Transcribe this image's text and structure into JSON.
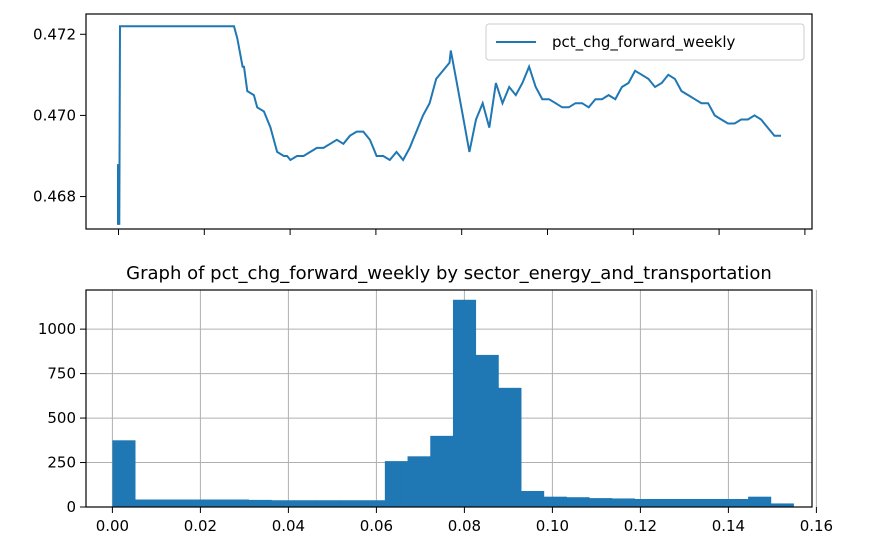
{
  "chart_data": [
    {
      "type": "line",
      "title": "",
      "xlabel": "",
      "ylabel": "",
      "ylim": [
        0.4672,
        0.4725
      ],
      "yticks": [
        "0.468",
        "0.470",
        "0.472"
      ],
      "ytick_values": [
        0.468,
        0.47,
        0.472
      ],
      "xlim": [
        0,
        1
      ],
      "xtick_count": 9,
      "legend": {
        "placement": "top-right",
        "entries": [
          "pct_chg_forward_weekly"
        ]
      },
      "grid": false,
      "series": [
        {
          "name": "pct_chg_forward_weekly",
          "color": "#1f77b4",
          "x": [
            0.0,
            0.0,
            0.002,
            0.003,
            0.003,
            0.02,
            0.05,
            0.1,
            0.15,
            0.17,
            0.175,
            0.18,
            0.188,
            0.19,
            0.195,
            0.205,
            0.21,
            0.22,
            0.23,
            0.24,
            0.25,
            0.255,
            0.26,
            0.27,
            0.28,
            0.29,
            0.3,
            0.31,
            0.32,
            0.33,
            0.34,
            0.35,
            0.36,
            0.37,
            0.38,
            0.385,
            0.39,
            0.4,
            0.41,
            0.42,
            0.43,
            0.44,
            0.445,
            0.45,
            0.46,
            0.47,
            0.48,
            0.49,
            0.5,
            0.502,
            0.51,
            0.52,
            0.53,
            0.54,
            0.55,
            0.56,
            0.57,
            0.58,
            0.59,
            0.6,
            0.61,
            0.62,
            0.63,
            0.64,
            0.65,
            0.66,
            0.67,
            0.68,
            0.69,
            0.7,
            0.71,
            0.72,
            0.73,
            0.74,
            0.75,
            0.76,
            0.77,
            0.78,
            0.79,
            0.8,
            0.81,
            0.82,
            0.83,
            0.84,
            0.85,
            0.86,
            0.87,
            0.88,
            0.89,
            0.9,
            0.91,
            0.92,
            0.93,
            0.94,
            0.95,
            0.96,
            0.97,
            0.98,
            0.99,
            1.0
          ],
          "y": [
            0.4673,
            0.4688,
            0.4673,
            0.4722,
            0.4722,
            0.4722,
            0.4722,
            0.4722,
            0.4722,
            0.4722,
            0.4722,
            0.4719,
            0.4712,
            0.4712,
            0.4706,
            0.4705,
            0.4702,
            0.4701,
            0.4697,
            0.4691,
            0.469,
            0.469,
            0.4689,
            0.469,
            0.469,
            0.4691,
            0.4692,
            0.4692,
            0.4693,
            0.4694,
            0.4693,
            0.4695,
            0.4696,
            0.4696,
            0.4694,
            0.4692,
            0.469,
            0.469,
            0.4689,
            0.4691,
            0.4689,
            0.4692,
            0.4694,
            0.4696,
            0.47,
            0.4703,
            0.4709,
            0.4711,
            0.4713,
            0.4716,
            0.4709,
            0.47,
            0.4691,
            0.4699,
            0.4703,
            0.4697,
            0.4708,
            0.4703,
            0.4707,
            0.4705,
            0.4708,
            0.4712,
            0.4707,
            0.4704,
            0.4704,
            0.4703,
            0.4702,
            0.4702,
            0.4703,
            0.4703,
            0.4702,
            0.4704,
            0.4704,
            0.4705,
            0.4704,
            0.4707,
            0.4708,
            0.4711,
            0.471,
            0.4709,
            0.4707,
            0.4708,
            0.471,
            0.4709,
            0.4706,
            0.4705,
            0.4704,
            0.4703,
            0.4703,
            0.47,
            0.4699,
            0.4698,
            0.4698,
            0.4699,
            0.4699,
            0.47,
            0.4699,
            0.4697,
            0.4695,
            0.4695
          ]
        }
      ]
    },
    {
      "type": "bar",
      "title": "Graph of pct_chg_forward_weekly by sector_energy_and_transportation",
      "xlabel": "",
      "ylabel": "",
      "xlim": [
        -0.006,
        0.159
      ],
      "ylim": [
        0,
        1220
      ],
      "xticks": [
        "0.00",
        "0.02",
        "0.04",
        "0.06",
        "0.08",
        "0.10",
        "0.12",
        "0.14",
        "0.16"
      ],
      "xtick_values": [
        0.0,
        0.02,
        0.04,
        0.06,
        0.08,
        0.1,
        0.12,
        0.14,
        0.16
      ],
      "yticks": [
        "0",
        "250",
        "500",
        "750",
        "1000"
      ],
      "ytick_values": [
        0,
        250,
        500,
        750,
        1000
      ],
      "grid": true,
      "color": "#1f77b4",
      "bin_start": 0.0,
      "bin_width": 0.00516,
      "values": [
        375,
        42,
        42,
        42,
        42,
        42,
        40,
        38,
        38,
        38,
        38,
        38,
        258,
        285,
        400,
        1165,
        855,
        670,
        90,
        58,
        55,
        50,
        48,
        45,
        45,
        45,
        45,
        45,
        58,
        20
      ]
    }
  ]
}
